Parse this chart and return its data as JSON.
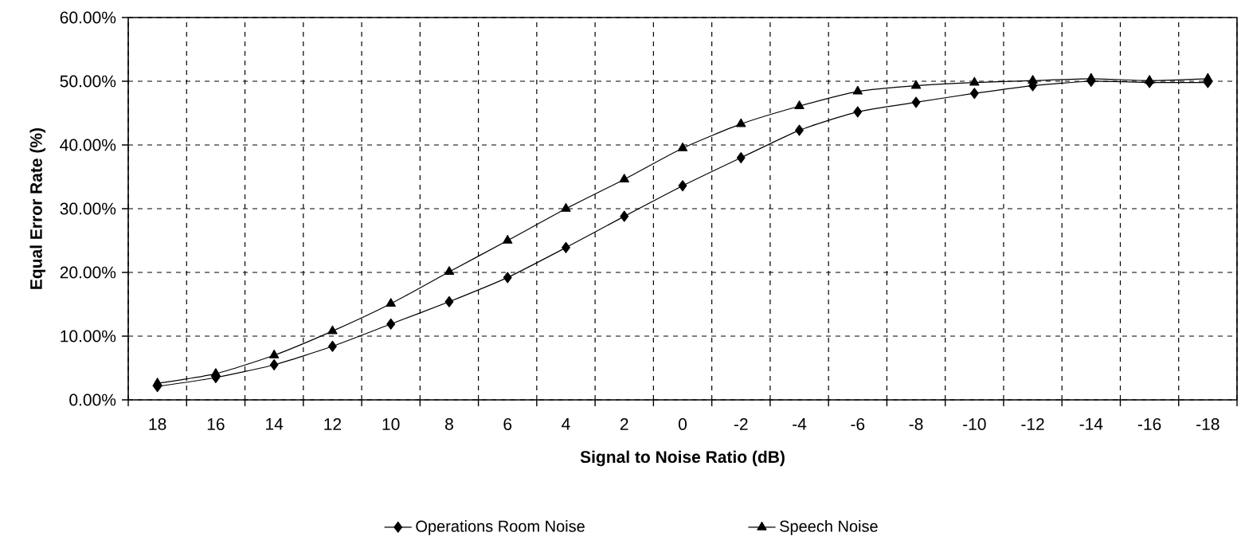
{
  "chart_data": {
    "type": "line",
    "xlabel": "Signal to Noise Ratio (dB)",
    "ylabel": "Equal Error Rate (%)",
    "categories": [
      "18",
      "16",
      "14",
      "12",
      "10",
      "8",
      "6",
      "4",
      "2",
      "0",
      "-2",
      "-4",
      "-6",
      "-8",
      "-10",
      "-12",
      "-14",
      "-16",
      "-18"
    ],
    "series": [
      {
        "name": "Operations Room Noise",
        "color": "#000000",
        "marker": "diamond",
        "values": [
          2.1,
          3.5,
          5.5,
          8.4,
          11.9,
          15.4,
          19.2,
          23.9,
          28.8,
          33.6,
          38.0,
          42.3,
          45.2,
          46.7,
          48.1,
          49.3,
          50.0,
          49.8,
          49.8
        ]
      },
      {
        "name": "Speech Noise",
        "color": "#000000",
        "marker": "triangle",
        "values": [
          2.6,
          4.1,
          7.0,
          10.8,
          15.1,
          20.1,
          25.0,
          30.0,
          34.6,
          39.5,
          43.3,
          46.1,
          48.4,
          49.3,
          49.8,
          50.1,
          50.4,
          50.1,
          50.4
        ]
      }
    ],
    "ylim": [
      0,
      60
    ],
    "yticks": [
      {
        "value": 0,
        "label": "0.00%"
      },
      {
        "value": 10,
        "label": "10.00%"
      },
      {
        "value": 20,
        "label": "20.00%"
      },
      {
        "value": 30,
        "label": "30.00%"
      },
      {
        "value": 40,
        "label": "40.00%"
      },
      {
        "value": 50,
        "label": "50.00%"
      },
      {
        "value": 60,
        "label": "60.00%"
      }
    ],
    "grid": true,
    "legend": "bottom"
  }
}
